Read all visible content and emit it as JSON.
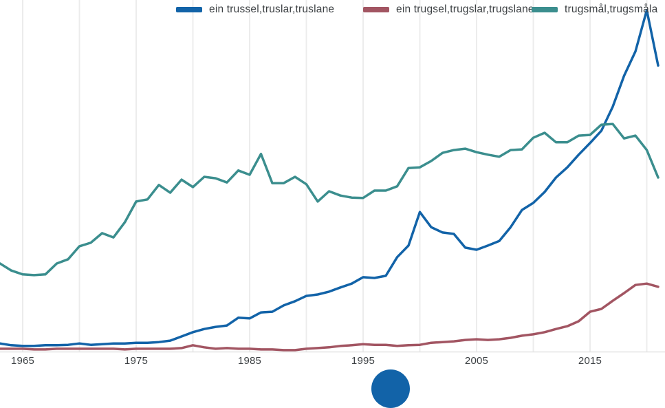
{
  "legend": {
    "items": [
      {
        "label": "ein trussel,truslar,truslane",
        "color": "#1263a8"
      },
      {
        "label": "ein trugsel,trugslar,trugslane",
        "color": "#a25562"
      },
      {
        "label": "trugsmål,trugsmåla",
        "color": "#3b8e8e"
      }
    ]
  },
  "x_axis": {
    "tick_labels": [
      "1965",
      "1975",
      "1985",
      "1995",
      "2005",
      "2015"
    ]
  },
  "fab": {
    "color": "#1263a8"
  },
  "chart_data": {
    "type": "line",
    "title": "",
    "xlabel": "",
    "ylabel": "",
    "y_units": "relative frequency, unlabeled axis (values are % of plot height above baseline)",
    "ylim": [
      0,
      100
    ],
    "x_ticks": [
      1965,
      1975,
      1985,
      1995,
      2005,
      2015
    ],
    "gridline_years": [
      1965,
      1970,
      1975,
      1980,
      1985,
      1990,
      1995,
      2000,
      2005,
      2010,
      2015,
      2020
    ],
    "grid": "vertical-only",
    "legend_position": "top-center",
    "colors": {
      "grid": "#ececec",
      "baseline": "#e3e3e3"
    },
    "x": [
      1963,
      1964,
      1965,
      1966,
      1967,
      1968,
      1969,
      1970,
      1971,
      1972,
      1973,
      1974,
      1975,
      1976,
      1977,
      1978,
      1979,
      1980,
      1981,
      1982,
      1983,
      1984,
      1985,
      1986,
      1987,
      1988,
      1989,
      1990,
      1991,
      1992,
      1993,
      1994,
      1995,
      1996,
      1997,
      1998,
      1999,
      2000,
      2001,
      2002,
      2003,
      2004,
      2005,
      2006,
      2007,
      2008,
      2009,
      2010,
      2011,
      2012,
      2013,
      2014,
      2015,
      2016,
      2017,
      2018,
      2019,
      2020,
      2021
    ],
    "series": [
      {
        "name": "ein trussel,truslar,truslane",
        "color": "#1263a8",
        "values": [
          2.5,
          2.0,
          1.8,
          1.8,
          2.0,
          2.0,
          2.1,
          2.5,
          2.1,
          2.3,
          2.5,
          2.5,
          2.7,
          2.7,
          2.9,
          3.3,
          4.5,
          5.7,
          6.6,
          7.2,
          7.6,
          9.8,
          9.6,
          11.3,
          11.5,
          13.3,
          14.5,
          16.0,
          16.4,
          17.2,
          18.4,
          19.5,
          21.3,
          21.1,
          21.7,
          27.0,
          30.3,
          39.8,
          35.5,
          34.0,
          33.6,
          29.7,
          29.1,
          30.3,
          31.6,
          35.5,
          40.4,
          42.4,
          45.5,
          49.6,
          52.5,
          56.1,
          59.4,
          62.9,
          69.7,
          78.5,
          85.4,
          97.1,
          81.4
        ]
      },
      {
        "name": "ein trugsel,trugslar,trugslane",
        "color": "#a25562",
        "values": [
          1.0,
          1.0,
          1.0,
          0.8,
          0.8,
          1.0,
          1.0,
          1.0,
          1.0,
          1.0,
          1.0,
          0.8,
          1.0,
          1.0,
          1.0,
          1.0,
          1.2,
          2.0,
          1.4,
          1.0,
          1.2,
          1.0,
          1.0,
          0.8,
          0.8,
          0.6,
          0.6,
          1.0,
          1.2,
          1.4,
          1.8,
          2.0,
          2.3,
          2.1,
          2.1,
          1.8,
          2.0,
          2.1,
          2.7,
          2.9,
          3.1,
          3.5,
          3.7,
          3.5,
          3.7,
          4.1,
          4.7,
          5.1,
          5.7,
          6.6,
          7.4,
          8.8,
          11.5,
          12.3,
          14.6,
          16.8,
          19.1,
          19.5,
          18.6
        ]
      },
      {
        "name": "trugsmål,trugsmåla",
        "color": "#3b8e8e",
        "values": [
          25.2,
          23.2,
          22.1,
          21.9,
          22.1,
          25.2,
          26.4,
          30.1,
          31.1,
          33.8,
          32.6,
          36.9,
          42.8,
          43.4,
          47.5,
          45.3,
          49.0,
          46.9,
          49.8,
          49.4,
          48.2,
          51.6,
          50.4,
          56.3,
          48.0,
          48.0,
          49.8,
          47.7,
          42.8,
          45.7,
          44.5,
          43.9,
          43.8,
          45.9,
          45.9,
          47.1,
          52.3,
          52.5,
          54.3,
          56.6,
          57.4,
          57.8,
          56.8,
          56.1,
          55.5,
          57.4,
          57.6,
          60.9,
          62.3,
          59.6,
          59.6,
          61.5,
          61.7,
          64.6,
          64.8,
          60.7,
          61.5,
          57.4,
          49.6
        ]
      }
    ]
  }
}
